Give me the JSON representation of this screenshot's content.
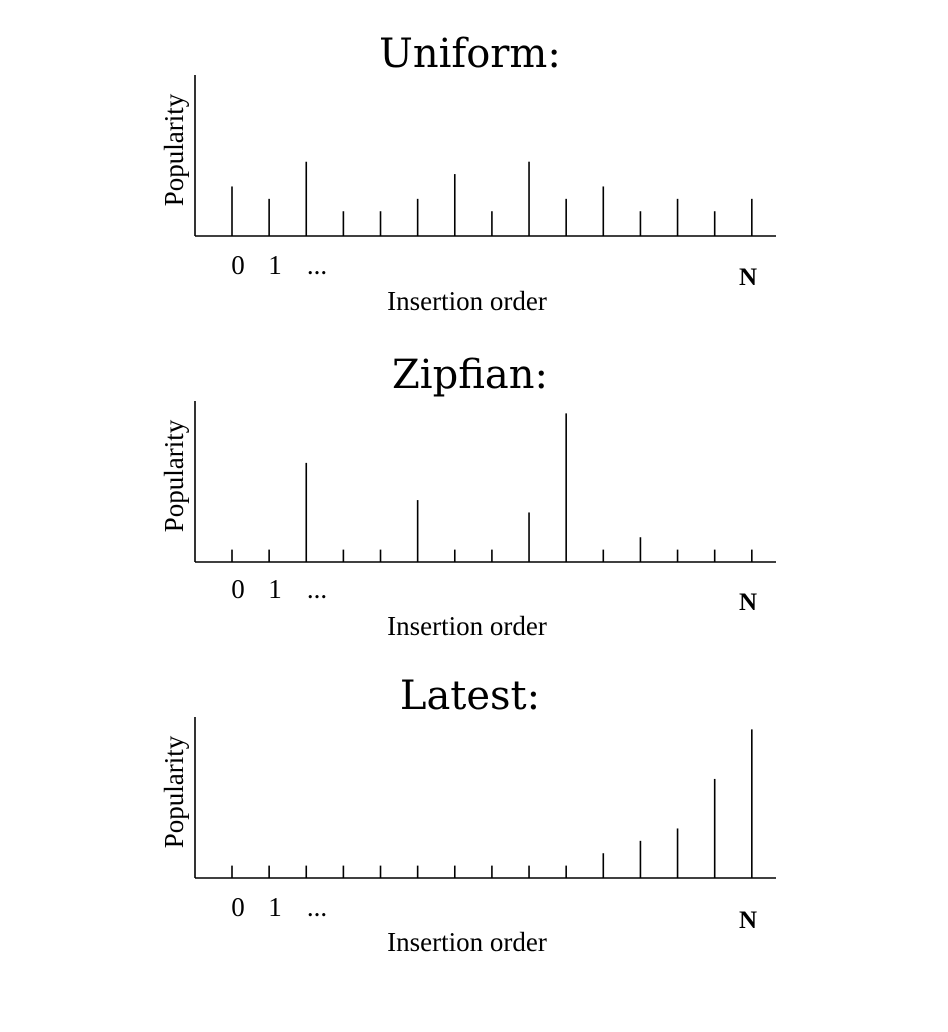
{
  "chart_data": [
    {
      "type": "bar",
      "title": "Uniform:",
      "xlabel": "Insertion order",
      "ylabel": "Popularity",
      "tick_labels": [
        "0",
        "1",
        "...",
        "N"
      ],
      "values": [
        4,
        3,
        6,
        2,
        2,
        3,
        5,
        2,
        6,
        3,
        4,
        2,
        3,
        2,
        3
      ],
      "ylim": [
        0,
        13
      ]
    },
    {
      "type": "bar",
      "title": "Zipfian:",
      "xlabel": "Insertion order",
      "ylabel": "Popularity",
      "tick_labels": [
        "0",
        "1",
        "...",
        "N"
      ],
      "values": [
        1,
        1,
        8,
        1,
        1,
        5,
        1,
        1,
        4,
        12,
        1,
        2,
        1,
        1,
        1
      ],
      "ylim": [
        0,
        13
      ]
    },
    {
      "type": "bar",
      "title": "Latest:",
      "xlabel": "Insertion order",
      "ylabel": "Popularity",
      "tick_labels": [
        "0",
        "1",
        "...",
        "N"
      ],
      "values": [
        1,
        1,
        1,
        1,
        1,
        1,
        1,
        1,
        1,
        1,
        2,
        3,
        4,
        8,
        12
      ],
      "ylim": [
        0,
        13
      ]
    }
  ]
}
